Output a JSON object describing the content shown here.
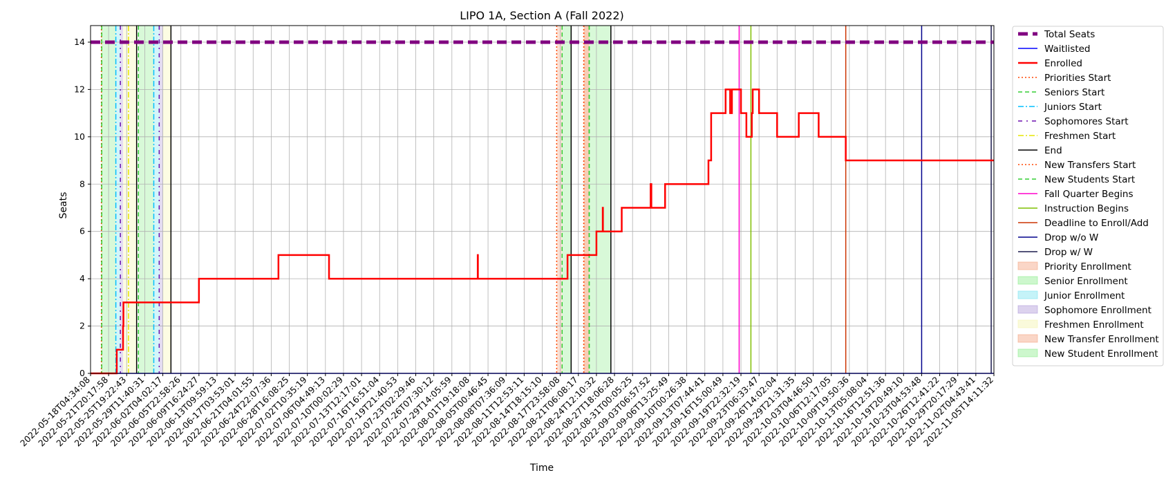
{
  "chart_data": {
    "type": "line",
    "title": "LIPO 1A, Section A (Fall 2022)",
    "xlabel": "Time",
    "ylabel": "Seats",
    "x_range": [
      "2022-05-18T04:34:08",
      "2022-11-05T14:11:32"
    ],
    "ylim": [
      0,
      14.7
    ],
    "y_ticks": [
      0,
      2,
      4,
      6,
      8,
      10,
      12,
      14
    ],
    "grid": true,
    "legend_position": "outside-right",
    "x_tick_labels": [
      "2022-05-18T04:34:08",
      "2022-05-21T20:17:58",
      "2022-05-25T19:22:43",
      "2022-05-29T11:40:31",
      "2022-06-02T04:02:17",
      "2022-06-05T22:58:26",
      "2022-06-09T16:24:27",
      "2022-06-13T09:59:13",
      "2022-06-17T03:53:01",
      "2022-06-21T04:01:55",
      "2022-06-24T22:07:36",
      "2022-06-28T16:08:25",
      "2022-07-02T10:35:19",
      "2022-07-06T04:49:13",
      "2022-07-10T00:02:29",
      "2022-07-13T12:17:01",
      "2022-07-16T16:51:04",
      "2022-07-19T21:40:53",
      "2022-07-23T02:29:46",
      "2022-07-26T07:30:12",
      "2022-07-29T14:05:59",
      "2022-08-01T19:18:08",
      "2022-08-05T00:46:45",
      "2022-08-08T07:36:09",
      "2022-08-11T12:53:11",
      "2022-08-14T18:15:10",
      "2022-08-17T23:58:08",
      "2022-08-21T06:08:17",
      "2022-08-24T12:10:32",
      "2022-08-27T18:06:28",
      "2022-08-31T00:05:25",
      "2022-09-03T06:57:52",
      "2022-09-06T13:25:49",
      "2022-09-10T00:26:38",
      "2022-09-13T07:44:41",
      "2022-09-16T15:00:49",
      "2022-09-19T22:32:19",
      "2022-09-23T06:33:47",
      "2022-09-26T14:02:04",
      "2022-09-29T21:31:35",
      "2022-10-03T04:46:50",
      "2022-10-06T12:17:05",
      "2022-10-09T19:50:36",
      "2022-10-13T05:08:04",
      "2022-10-16T12:51:36",
      "2022-10-19T20:49:10",
      "2022-10-23T04:53:48",
      "2022-10-26T12:41:22",
      "2022-10-29T20:17:29",
      "2022-11-02T04:43:41",
      "2022-11-05T14:11:32"
    ],
    "series": [
      {
        "name": "Total Seats",
        "color": "#800080",
        "style": "thick-dashed",
        "x": [
          0,
          50
        ],
        "values": [
          14,
          14
        ]
      },
      {
        "name": "Waitlisted",
        "color": "#0000ff",
        "style": "solid",
        "x": [
          0,
          50
        ],
        "values": [
          0,
          0
        ]
      },
      {
        "name": "Enrolled",
        "color": "#ff0000",
        "style": "step",
        "x": [
          0,
          1.4,
          1.45,
          1.75,
          1.8,
          1.82,
          2.0,
          2.05,
          5.8,
          6.0,
          10.2,
          10.4,
          13.0,
          13.2,
          21.42,
          21.43,
          21.44,
          25.8,
          26.3,
          26.4,
          27.8,
          28.0,
          28.3,
          28.35,
          28.36,
          29.2,
          29.4,
          30.6,
          31.0,
          31.04,
          31.06,
          31.8,
          34.0,
          34.2,
          34.25,
          34.35,
          35.1,
          35.15,
          35.2,
          35.3,
          35.4,
          35.5,
          36.0,
          36.1,
          36.2,
          36.3,
          36.55,
          36.6,
          36.65,
          37.0,
          37.05,
          37.1,
          37.15,
          38.0,
          38.2,
          39.2,
          39.3,
          40.3,
          40.4,
          41.8,
          41.85,
          50
        ],
        "values": [
          0,
          0,
          1,
          1,
          2,
          3,
          3,
          3,
          3,
          4,
          4,
          5,
          5,
          4,
          4,
          5,
          4,
          4,
          4,
          5,
          5,
          6,
          6,
          7,
          6,
          6,
          7,
          7,
          8,
          7,
          7,
          8,
          8,
          9,
          9,
          11,
          11,
          12,
          12,
          12,
          11,
          12,
          11,
          11,
          11,
          10,
          10,
          11,
          12,
          11,
          11,
          11,
          11,
          10,
          10,
          11,
          11,
          10,
          10,
          9,
          9,
          9
        ]
      },
      {
        "name": "Priorities Start",
        "color": "#ff4500",
        "style": "dotted",
        "x": [
          0.6,
          25.8,
          27.3
        ]
      },
      {
        "name": "Seniors Start",
        "color": "#32cd32",
        "style": "dashed",
        "x": [
          0.62,
          2.65,
          26.1,
          27.6
        ]
      },
      {
        "name": "Juniors Start",
        "color": "#00bfff",
        "style": "dash-dot",
        "x": [
          1.4,
          3.5
        ]
      },
      {
        "name": "Sophomores Start",
        "color": "#6a0dad",
        "style": "dash-dot-sparse",
        "x": [
          1.65,
          3.8
        ]
      },
      {
        "name": "Freshmen Start",
        "color": "#e6e600",
        "style": "dash-dot",
        "x": [
          2.1
        ]
      },
      {
        "name": "End",
        "color": "#000000",
        "style": "solid",
        "x": [
          2.55,
          4.45,
          26.6,
          28.8
        ]
      },
      {
        "name": "New Transfers Start",
        "color": "#ff4500",
        "style": "dotted",
        "x": [
          27.3
        ]
      },
      {
        "name": "New Students Start",
        "color": "#32cd32",
        "style": "dashed",
        "x": [
          27.6
        ]
      },
      {
        "name": "Fall Quarter Begins",
        "color": "#ff00cc",
        "style": "solid",
        "x": [
          35.9
        ]
      },
      {
        "name": "Instruction Begins",
        "color": "#7fbf00",
        "style": "solid",
        "x": [
          36.55
        ]
      },
      {
        "name": "Deadline to Enroll/Add",
        "color": "#cc3300",
        "style": "solid",
        "x": [
          41.8
        ]
      },
      {
        "name": "Drop w/o W",
        "color": "#00008b",
        "style": "solid",
        "x": [
          46.0
        ]
      },
      {
        "name": "Drop w/ W",
        "color": "#1a1a4d",
        "style": "solid",
        "x": [
          49.85
        ]
      }
    ],
    "shaded_regions": [
      {
        "name": "Priority Enrollment",
        "color": "#f4a582",
        "ranges": [
          [
            0.6,
            0.62
          ],
          [
            25.8,
            26.1
          ],
          [
            27.3,
            27.6
          ]
        ]
      },
      {
        "name": "Senior Enrollment",
        "color": "#90ee90",
        "ranges": [
          [
            0.62,
            1.4
          ],
          [
            2.65,
            3.5
          ]
        ]
      },
      {
        "name": "Junior Enrollment",
        "color": "#7fe5f0",
        "ranges": [
          [
            1.4,
            1.65
          ],
          [
            3.5,
            3.8
          ]
        ]
      },
      {
        "name": "Sophomore Enrollment",
        "color": "#b19cd9",
        "ranges": [
          [
            1.65,
            1.8
          ],
          [
            3.8,
            4.0
          ]
        ]
      },
      {
        "name": "Freshmen Enrollment",
        "color": "#f5f5b0",
        "ranges": [
          [
            1.8,
            2.55
          ],
          [
            4.0,
            4.45
          ]
        ]
      },
      {
        "name": "New Transfer Enrollment",
        "color": "#f4a582",
        "ranges": [
          [
            27.3,
            27.6
          ]
        ]
      },
      {
        "name": "New Student Enrollment",
        "color": "#90ee90",
        "ranges": [
          [
            26.1,
            26.6
          ],
          [
            27.6,
            28.8
          ]
        ]
      }
    ],
    "legend": [
      {
        "label": "Total Seats",
        "kind": "line",
        "color": "#800080",
        "style": "thick-dashed"
      },
      {
        "label": "Waitlisted",
        "kind": "line",
        "color": "#0000ff",
        "style": "solid"
      },
      {
        "label": "Enrolled",
        "kind": "line",
        "color": "#ff0000",
        "style": "solid-thick"
      },
      {
        "label": "Priorities Start",
        "kind": "line",
        "color": "#ff4500",
        "style": "dotted"
      },
      {
        "label": "Seniors Start",
        "kind": "line",
        "color": "#32cd32",
        "style": "dashed"
      },
      {
        "label": "Juniors Start",
        "kind": "line",
        "color": "#00bfff",
        "style": "dash-dot"
      },
      {
        "label": "Sophomores Start",
        "kind": "line",
        "color": "#6a0dad",
        "style": "dash-dot-sparse"
      },
      {
        "label": "Freshmen Start",
        "kind": "line",
        "color": "#e6e600",
        "style": "dash-dot"
      },
      {
        "label": "End",
        "kind": "line",
        "color": "#000000",
        "style": "solid"
      },
      {
        "label": "New Transfers Start",
        "kind": "line",
        "color": "#ff4500",
        "style": "dotted"
      },
      {
        "label": "New Students Start",
        "kind": "line",
        "color": "#32cd32",
        "style": "dashed"
      },
      {
        "label": "Fall Quarter Begins",
        "kind": "line",
        "color": "#ff00cc",
        "style": "solid"
      },
      {
        "label": "Instruction Begins",
        "kind": "line",
        "color": "#7fbf00",
        "style": "solid"
      },
      {
        "label": "Deadline to Enroll/Add",
        "kind": "line",
        "color": "#cc3300",
        "style": "solid"
      },
      {
        "label": "Drop w/o W",
        "kind": "line",
        "color": "#00008b",
        "style": "solid"
      },
      {
        "label": "Drop w/ W",
        "kind": "line",
        "color": "#1a1a4d",
        "style": "solid"
      },
      {
        "label": "Priority Enrollment",
        "kind": "patch",
        "color": "#f4a582"
      },
      {
        "label": "Senior Enrollment",
        "kind": "patch",
        "color": "#90ee90"
      },
      {
        "label": "Junior Enrollment",
        "kind": "patch",
        "color": "#7fe5f0"
      },
      {
        "label": "Sophomore Enrollment",
        "kind": "patch",
        "color": "#b19cd9"
      },
      {
        "label": "Freshmen Enrollment",
        "kind": "patch",
        "color": "#f5f5b0"
      },
      {
        "label": "New Transfer Enrollment",
        "kind": "patch",
        "color": "#f4a582"
      },
      {
        "label": "New Student Enrollment",
        "kind": "patch",
        "color": "#90ee90"
      }
    ]
  }
}
